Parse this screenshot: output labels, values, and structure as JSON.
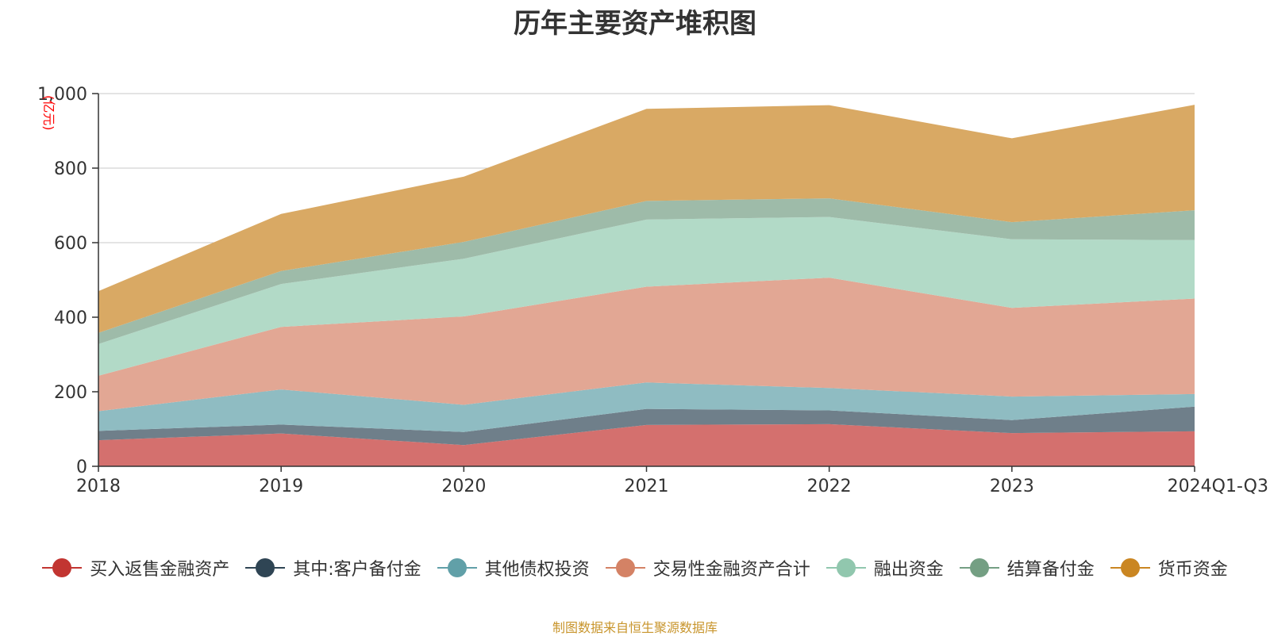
{
  "chart_data": {
    "type": "area",
    "stacked": true,
    "title": "历年主要资产堆积图",
    "unit_label": "(亿元)",
    "categories": [
      "2018",
      "2019",
      "2020",
      "2021",
      "2022",
      "2023",
      "2024Q1-Q3"
    ],
    "yticks": [
      "0",
      "200",
      "400",
      "600",
      "800",
      "1,000"
    ],
    "ylim": [
      0,
      1000
    ],
    "grid": true,
    "legend_position": "bottom",
    "series": [
      {
        "name": "买入返售金融资产",
        "color": "#c23531",
        "fill": "#d4706e",
        "values": [
          70,
          88,
          57,
          111,
          113,
          89,
          94
        ]
      },
      {
        "name": "其中:客户备付金",
        "color": "#2f4554",
        "fill": "#6f7f8a",
        "values": [
          25,
          24,
          35,
          43,
          37,
          35,
          66
        ]
      },
      {
        "name": "其他债权投资",
        "color": "#61a0a8",
        "fill": "#8fbcc2",
        "values": [
          53,
          94,
          73,
          71,
          60,
          63,
          34
        ]
      },
      {
        "name": "交易性金融资产合计",
        "color": "#d48265",
        "fill": "#e2a794",
        "values": [
          95,
          168,
          237,
          257,
          296,
          238,
          256
        ]
      },
      {
        "name": "融出资金",
        "color": "#91c7ae",
        "fill": "#b2dac7",
        "values": [
          85,
          115,
          155,
          180,
          163,
          184,
          157
        ]
      },
      {
        "name": "结算备付金",
        "color": "#749f83",
        "fill": "#9ebba9",
        "values": [
          30,
          35,
          45,
          50,
          50,
          46,
          80
        ]
      },
      {
        "name": "货币资金",
        "color": "#ca8622",
        "fill": "#d9a964",
        "values": [
          112,
          153,
          175,
          247,
          250,
          225,
          283
        ]
      }
    ]
  },
  "source": "制图数据来自恒生聚源数据库"
}
